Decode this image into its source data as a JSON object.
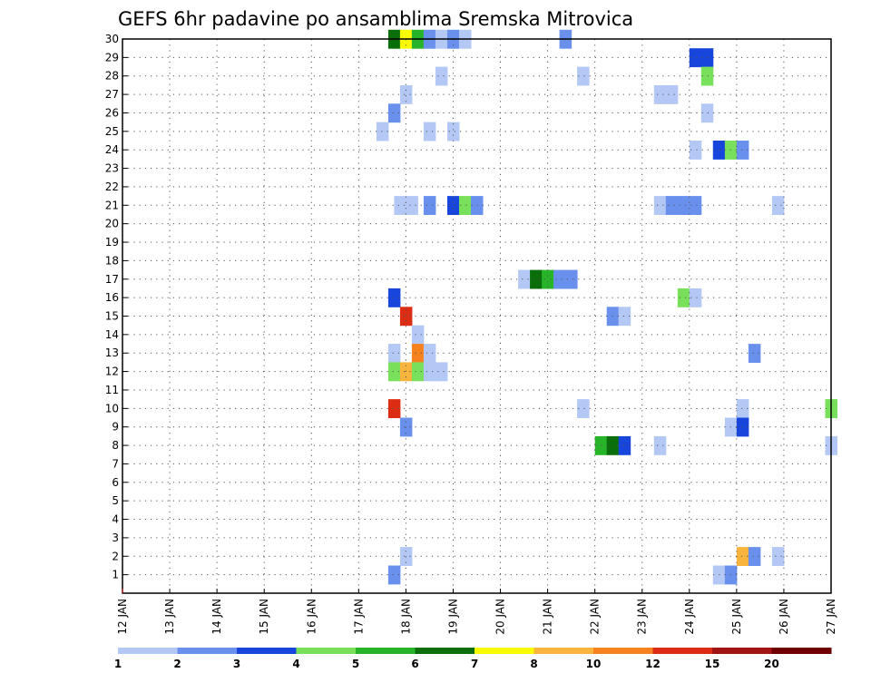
{
  "chart_data": {
    "type": "heatmap",
    "title": "GEFS 6hr padavine po ansamblima Sremska Mitrovica",
    "x_ticks": [
      "12 JAN",
      "13 JAN",
      "14 JAN",
      "15 JAN",
      "16 JAN",
      "17 JAN",
      "18 JAN",
      "19 JAN",
      "20 JAN",
      "21 JAN",
      "22 JAN",
      "23 JAN",
      "24 JAN",
      "25 JAN",
      "26 JAN",
      "27 JAN"
    ],
    "y_ticks": [
      "1",
      "2",
      "3",
      "4",
      "5",
      "6",
      "7",
      "8",
      "9",
      "10",
      "11",
      "12",
      "13",
      "14",
      "15",
      "16",
      "17",
      "18",
      "19",
      "20",
      "21",
      "22",
      "23",
      "24",
      "25",
      "26",
      "27",
      "28",
      "29",
      "30"
    ],
    "x_unit": "day (Jan), 6-hour steps",
    "y_range": [
      0,
      30
    ],
    "grid": true,
    "colorbar": {
      "labels": [
        "1",
        "2",
        "3",
        "4",
        "5",
        "6",
        "7",
        "8",
        "10",
        "12",
        "15",
        "20"
      ],
      "colors": [
        "#b4c8f5",
        "#6a90ee",
        "#1846dc",
        "#78e05a",
        "#28b428",
        "#0a6e0a",
        "#fafa00",
        "#f8b43c",
        "#f5821e",
        "#dc2d14",
        "#a01414",
        "#6e0000"
      ]
    },
    "cells": [
      {
        "day": 17.75,
        "member": 30,
        "bin": 6
      },
      {
        "day": 18.0,
        "member": 30,
        "bin": 7
      },
      {
        "day": 18.25,
        "member": 30,
        "bin": 5
      },
      {
        "day": 18.5,
        "member": 30,
        "bin": 2
      },
      {
        "day": 18.75,
        "member": 30,
        "bin": 1
      },
      {
        "day": 19.0,
        "member": 30,
        "bin": 2
      },
      {
        "day": 19.25,
        "member": 30,
        "bin": 1
      },
      {
        "day": 21.375,
        "member": 30,
        "bin": 2
      },
      {
        "day": 24.125,
        "member": 29,
        "bin": 3
      },
      {
        "day": 24.375,
        "member": 29,
        "bin": 3
      },
      {
        "day": 18.75,
        "member": 28,
        "bin": 1
      },
      {
        "day": 21.75,
        "member": 28,
        "bin": 1
      },
      {
        "day": 24.375,
        "member": 28,
        "bin": 4
      },
      {
        "day": 18.0,
        "member": 27,
        "bin": 1
      },
      {
        "day": 23.375,
        "member": 27,
        "bin": 1
      },
      {
        "day": 23.625,
        "member": 27,
        "bin": 1
      },
      {
        "day": 17.75,
        "member": 26,
        "bin": 2
      },
      {
        "day": 24.375,
        "member": 26,
        "bin": 1
      },
      {
        "day": 17.5,
        "member": 25,
        "bin": 1
      },
      {
        "day": 18.5,
        "member": 25,
        "bin": 1
      },
      {
        "day": 19.0,
        "member": 25,
        "bin": 1
      },
      {
        "day": 24.125,
        "member": 24,
        "bin": 1
      },
      {
        "day": 24.625,
        "member": 24,
        "bin": 3
      },
      {
        "day": 24.875,
        "member": 24,
        "bin": 4
      },
      {
        "day": 25.125,
        "member": 24,
        "bin": 2
      },
      {
        "day": 17.875,
        "member": 21,
        "bin": 1
      },
      {
        "day": 18.125,
        "member": 21,
        "bin": 1
      },
      {
        "day": 18.5,
        "member": 21,
        "bin": 2
      },
      {
        "day": 19.0,
        "member": 21,
        "bin": 3
      },
      {
        "day": 19.25,
        "member": 21,
        "bin": 4
      },
      {
        "day": 19.5,
        "member": 21,
        "bin": 2
      },
      {
        "day": 23.375,
        "member": 21,
        "bin": 1
      },
      {
        "day": 23.625,
        "member": 21,
        "bin": 2
      },
      {
        "day": 23.875,
        "member": 21,
        "bin": 2
      },
      {
        "day": 24.125,
        "member": 21,
        "bin": 2
      },
      {
        "day": 25.875,
        "member": 21,
        "bin": 1
      },
      {
        "day": 20.5,
        "member": 17,
        "bin": 1
      },
      {
        "day": 20.75,
        "member": 17,
        "bin": 6
      },
      {
        "day": 21.0,
        "member": 17,
        "bin": 5
      },
      {
        "day": 21.25,
        "member": 17,
        "bin": 2
      },
      {
        "day": 21.5,
        "member": 17,
        "bin": 2
      },
      {
        "day": 17.75,
        "member": 16,
        "bin": 3
      },
      {
        "day": 23.875,
        "member": 16,
        "bin": 4
      },
      {
        "day": 24.125,
        "member": 16,
        "bin": 1
      },
      {
        "day": 18.0,
        "member": 15,
        "bin": 10
      },
      {
        "day": 22.375,
        "member": 15,
        "bin": 2
      },
      {
        "day": 22.625,
        "member": 15,
        "bin": 1
      },
      {
        "day": 18.25,
        "member": 14,
        "bin": 1
      },
      {
        "day": 17.75,
        "member": 13,
        "bin": 1
      },
      {
        "day": 18.25,
        "member": 13,
        "bin": 9
      },
      {
        "day": 18.5,
        "member": 13,
        "bin": 1
      },
      {
        "day": 25.375,
        "member": 13,
        "bin": 2
      },
      {
        "day": 17.75,
        "member": 12,
        "bin": 4
      },
      {
        "day": 18.0,
        "member": 12,
        "bin": 8
      },
      {
        "day": 18.25,
        "member": 12,
        "bin": 4
      },
      {
        "day": 18.5,
        "member": 12,
        "bin": 1
      },
      {
        "day": 18.75,
        "member": 12,
        "bin": 1
      },
      {
        "day": 17.75,
        "member": 10,
        "bin": 10
      },
      {
        "day": 21.75,
        "member": 10,
        "bin": 1
      },
      {
        "day": 25.125,
        "member": 10,
        "bin": 1
      },
      {
        "day": 27.0,
        "member": 10,
        "bin": 4
      },
      {
        "day": 18.0,
        "member": 9,
        "bin": 2
      },
      {
        "day": 24.875,
        "member": 9,
        "bin": 1
      },
      {
        "day": 25.125,
        "member": 9,
        "bin": 3
      },
      {
        "day": 22.125,
        "member": 8,
        "bin": 5
      },
      {
        "day": 22.375,
        "member": 8,
        "bin": 6
      },
      {
        "day": 22.625,
        "member": 8,
        "bin": 3
      },
      {
        "day": 23.375,
        "member": 8,
        "bin": 1
      },
      {
        "day": 27.0,
        "member": 8,
        "bin": 1
      },
      {
        "day": 18.0,
        "member": 2,
        "bin": 1
      },
      {
        "day": 25.125,
        "member": 2,
        "bin": 8
      },
      {
        "day": 25.375,
        "member": 2,
        "bin": 2
      },
      {
        "day": 25.875,
        "member": 2,
        "bin": 1
      },
      {
        "day": 17.75,
        "member": 1,
        "bin": 2
      },
      {
        "day": 24.625,
        "member": 1,
        "bin": 1
      },
      {
        "day": 24.875,
        "member": 1,
        "bin": 2
      }
    ]
  }
}
